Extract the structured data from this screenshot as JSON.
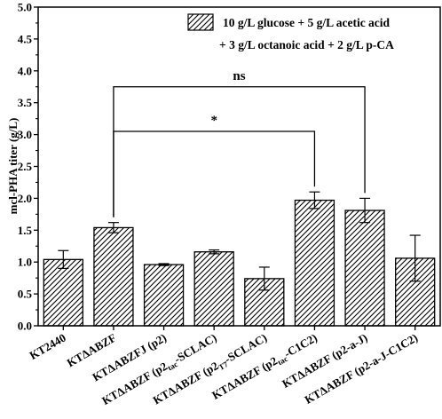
{
  "chart_data": {
    "type": "bar",
    "ylabel": "mcl-PHA titer (g/L)",
    "xlabel": "",
    "ylim": [
      0,
      5
    ],
    "yticks": [
      "0.0",
      "0.5",
      "1.0",
      "1.5",
      "2.0",
      "2.5",
      "3.0",
      "3.5",
      "4.0",
      "4.5",
      "5.0"
    ],
    "grid": false,
    "legend_position": "top-right",
    "categories": [
      {
        "pre": "KT2440",
        "sub": "",
        "post": ""
      },
      {
        "pre": "KTΔABZF",
        "sub": "",
        "post": ""
      },
      {
        "pre": "KTΔABZFJ (p2)",
        "sub": "",
        "post": ""
      },
      {
        "pre": "KTΔABZF (p2",
        "sub": "tac",
        "post": "-SCLAC)"
      },
      {
        "pre": "KTΔABZF (p2",
        "sub": "T7",
        "post": "-SCLAC)"
      },
      {
        "pre": "KTΔABZF (p2",
        "sub": "tac",
        "post": "-C1C2)"
      },
      {
        "pre": "KTΔABZF (p2-a-J)",
        "sub": "",
        "post": ""
      },
      {
        "pre": "KTΔABZF (p2-a-J-C1C2)",
        "sub": "",
        "post": ""
      }
    ],
    "series": [
      {
        "name": "10 g/L glucose + 5 g/L acetic acid + 3 g/L octanoic acid + 2 g/L p-CA",
        "name_lines": [
          "10 g/L glucose + 5 g/L acetic acid",
          "+ 3 g/L octanoic acid + 2 g/L p-CA"
        ],
        "values": [
          1.04,
          1.54,
          0.96,
          1.16,
          0.74,
          1.97,
          1.81,
          1.06
        ],
        "errors": [
          0.14,
          0.08,
          0.015,
          0.03,
          0.18,
          0.13,
          0.19,
          0.36
        ],
        "pattern": "diagonal-hatch",
        "color": "#000000"
      }
    ],
    "annotations": [
      {
        "label": "ns",
        "from": 1,
        "to": 6,
        "y": 3.75
      },
      {
        "label": "*",
        "from": 1,
        "to": 5,
        "y": 3.05
      }
    ]
  }
}
